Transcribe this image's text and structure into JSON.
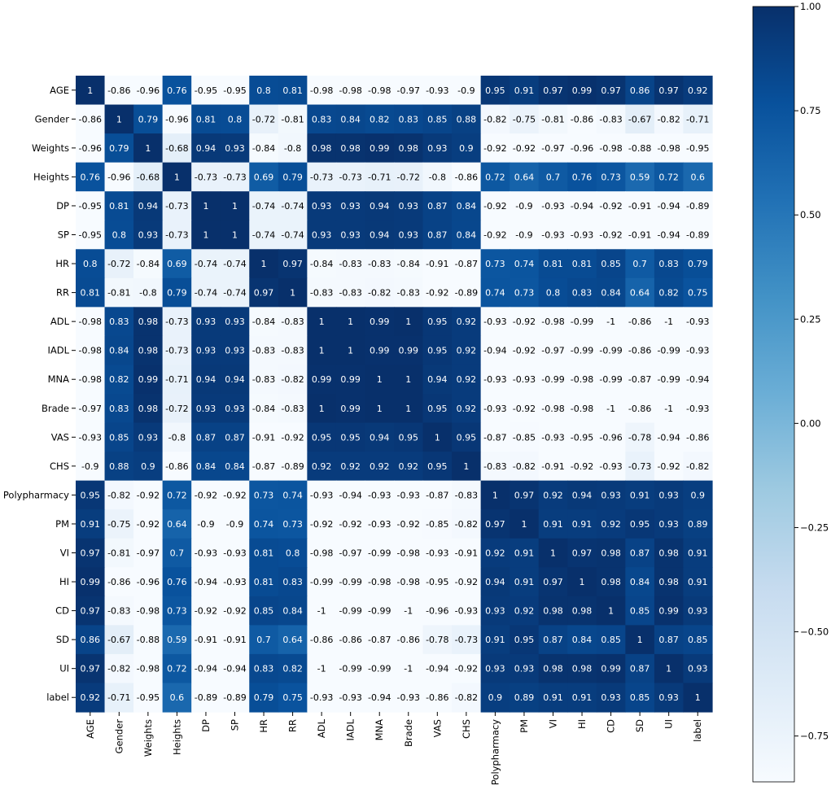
{
  "chart_data": {
    "type": "heatmap",
    "title": "",
    "xlabel": "",
    "ylabel": "",
    "labels": [
      "AGE",
      "Gender",
      "Weights",
      "Heights",
      "DP",
      "SP",
      "HR",
      "RR",
      "ADL",
      "IADL",
      "MNA",
      "Brade",
      "VAS",
      "CHS",
      "Polypharmacy",
      "PM",
      "VI",
      "HI",
      "CD",
      "SD",
      "UI",
      "label"
    ],
    "matrix": [
      [
        "1",
        "-0.86",
        "-0.96",
        "0.76",
        "-0.95",
        "-0.95",
        "0.8",
        "0.81",
        "-0.98",
        "-0.98",
        "-0.98",
        "-0.97",
        "-0.93",
        "-0.9",
        "0.95",
        "0.91",
        "0.97",
        "0.99",
        "0.97",
        "0.86",
        "0.97",
        "0.92"
      ],
      [
        "-0.86",
        "1",
        "0.79",
        "-0.96",
        "0.81",
        "0.8",
        "-0.72",
        "-0.81",
        "0.83",
        "0.84",
        "0.82",
        "0.83",
        "0.85",
        "0.88",
        "-0.82",
        "-0.75",
        "-0.81",
        "-0.86",
        "-0.83",
        "-0.67",
        "-0.82",
        "-0.71"
      ],
      [
        "-0.96",
        "0.79",
        "1",
        "-0.68",
        "0.94",
        "0.93",
        "-0.84",
        "-0.8",
        "0.98",
        "0.98",
        "0.99",
        "0.98",
        "0.93",
        "0.9",
        "-0.92",
        "-0.92",
        "-0.97",
        "-0.96",
        "-0.98",
        "-0.88",
        "-0.98",
        "-0.95"
      ],
      [
        "0.76",
        "-0.96",
        "-0.68",
        "1",
        "-0.73",
        "-0.73",
        "0.69",
        "0.79",
        "-0.73",
        "-0.73",
        "-0.71",
        "-0.72",
        "-0.8",
        "-0.86",
        "0.72",
        "0.64",
        "0.7",
        "0.76",
        "0.73",
        "0.59",
        "0.72",
        "0.6"
      ],
      [
        "-0.95",
        "0.81",
        "0.94",
        "-0.73",
        "1",
        "1",
        "-0.74",
        "-0.74",
        "0.93",
        "0.93",
        "0.94",
        "0.93",
        "0.87",
        "0.84",
        "-0.92",
        "-0.9",
        "-0.93",
        "-0.94",
        "-0.92",
        "-0.91",
        "-0.94",
        "-0.89"
      ],
      [
        "-0.95",
        "0.8",
        "0.93",
        "-0.73",
        "1",
        "1",
        "-0.74",
        "-0.74",
        "0.93",
        "0.93",
        "0.94",
        "0.93",
        "0.87",
        "0.84",
        "-0.92",
        "-0.9",
        "-0.93",
        "-0.93",
        "-0.92",
        "-0.91",
        "-0.94",
        "-0.89"
      ],
      [
        "0.8",
        "-0.72",
        "-0.84",
        "0.69",
        "-0.74",
        "-0.74",
        "1",
        "0.97",
        "-0.84",
        "-0.83",
        "-0.83",
        "-0.84",
        "-0.91",
        "-0.87",
        "0.73",
        "0.74",
        "0.81",
        "0.81",
        "0.85",
        "0.7",
        "0.83",
        "0.79"
      ],
      [
        "0.81",
        "-0.81",
        "-0.8",
        "0.79",
        "-0.74",
        "-0.74",
        "0.97",
        "1",
        "-0.83",
        "-0.83",
        "-0.82",
        "-0.83",
        "-0.92",
        "-0.89",
        "0.74",
        "0.73",
        "0.8",
        "0.83",
        "0.84",
        "0.64",
        "0.82",
        "0.75"
      ],
      [
        "-0.98",
        "0.83",
        "0.98",
        "-0.73",
        "0.93",
        "0.93",
        "-0.84",
        "-0.83",
        "1",
        "1",
        "0.99",
        "1",
        "0.95",
        "0.92",
        "-0.93",
        "-0.92",
        "-0.98",
        "-0.99",
        "-1",
        "-0.86",
        "-1",
        "-0.93"
      ],
      [
        "-0.98",
        "0.84",
        "0.98",
        "-0.73",
        "0.93",
        "0.93",
        "-0.83",
        "-0.83",
        "1",
        "1",
        "0.99",
        "0.99",
        "0.95",
        "0.92",
        "-0.94",
        "-0.92",
        "-0.97",
        "-0.99",
        "-0.99",
        "-0.86",
        "-0.99",
        "-0.93"
      ],
      [
        "-0.98",
        "0.82",
        "0.99",
        "-0.71",
        "0.94",
        "0.94",
        "-0.83",
        "-0.82",
        "0.99",
        "0.99",
        "1",
        "1",
        "0.94",
        "0.92",
        "-0.93",
        "-0.93",
        "-0.99",
        "-0.98",
        "-0.99",
        "-0.87",
        "-0.99",
        "-0.94"
      ],
      [
        "-0.97",
        "0.83",
        "0.98",
        "-0.72",
        "0.93",
        "0.93",
        "-0.84",
        "-0.83",
        "1",
        "0.99",
        "1",
        "1",
        "0.95",
        "0.92",
        "-0.93",
        "-0.92",
        "-0.98",
        "-0.98",
        "-1",
        "-0.86",
        "-1",
        "-0.93"
      ],
      [
        "-0.93",
        "0.85",
        "0.93",
        "-0.8",
        "0.87",
        "0.87",
        "-0.91",
        "-0.92",
        "0.95",
        "0.95",
        "0.94",
        "0.95",
        "1",
        "0.95",
        "-0.87",
        "-0.85",
        "-0.93",
        "-0.95",
        "-0.96",
        "-0.78",
        "-0.94",
        "-0.86"
      ],
      [
        "-0.9",
        "0.88",
        "0.9",
        "-0.86",
        "0.84",
        "0.84",
        "-0.87",
        "-0.89",
        "0.92",
        "0.92",
        "0.92",
        "0.92",
        "0.95",
        "1",
        "-0.83",
        "-0.82",
        "-0.91",
        "-0.92",
        "-0.93",
        "-0.73",
        "-0.92",
        "-0.82"
      ],
      [
        "0.95",
        "-0.82",
        "-0.92",
        "0.72",
        "-0.92",
        "-0.92",
        "0.73",
        "0.74",
        "-0.93",
        "-0.94",
        "-0.93",
        "-0.93",
        "-0.87",
        "-0.83",
        "1",
        "0.97",
        "0.92",
        "0.94",
        "0.93",
        "0.91",
        "0.93",
        "0.9"
      ],
      [
        "0.91",
        "-0.75",
        "-0.92",
        "0.64",
        "-0.9",
        "-0.9",
        "0.74",
        "0.73",
        "-0.92",
        "-0.92",
        "-0.93",
        "-0.92",
        "-0.85",
        "-0.82",
        "0.97",
        "1",
        "0.91",
        "0.91",
        "0.92",
        "0.95",
        "0.93",
        "0.89"
      ],
      [
        "0.97",
        "-0.81",
        "-0.97",
        "0.7",
        "-0.93",
        "-0.93",
        "0.81",
        "0.8",
        "-0.98",
        "-0.97",
        "-0.99",
        "-0.98",
        "-0.93",
        "-0.91",
        "0.92",
        "0.91",
        "1",
        "0.97",
        "0.98",
        "0.87",
        "0.98",
        "0.91"
      ],
      [
        "0.99",
        "-0.86",
        "-0.96",
        "0.76",
        "-0.94",
        "-0.93",
        "0.81",
        "0.83",
        "-0.99",
        "-0.99",
        "-0.98",
        "-0.98",
        "-0.95",
        "-0.92",
        "0.94",
        "0.91",
        "0.97",
        "1",
        "0.98",
        "0.84",
        "0.98",
        "0.91"
      ],
      [
        "0.97",
        "-0.83",
        "-0.98",
        "0.73",
        "-0.92",
        "-0.92",
        "0.85",
        "0.84",
        "-1",
        "-0.99",
        "-0.99",
        "-1",
        "-0.96",
        "-0.93",
        "0.93",
        "0.92",
        "0.98",
        "0.98",
        "1",
        "0.85",
        "0.99",
        "0.93"
      ],
      [
        "0.86",
        "-0.67",
        "-0.88",
        "0.59",
        "-0.91",
        "-0.91",
        "0.7",
        "0.64",
        "-0.86",
        "-0.86",
        "-0.87",
        "-0.86",
        "-0.78",
        "-0.73",
        "0.91",
        "0.95",
        "0.87",
        "0.84",
        "0.85",
        "1",
        "0.87",
        "0.85"
      ],
      [
        "0.97",
        "-0.82",
        "-0.98",
        "0.72",
        "-0.94",
        "-0.94",
        "0.83",
        "0.82",
        "-1",
        "-0.99",
        "-0.99",
        "-1",
        "-0.94",
        "-0.92",
        "0.93",
        "0.93",
        "0.98",
        "0.98",
        "0.99",
        "0.87",
        "1",
        "0.93"
      ],
      [
        "0.92",
        "-0.71",
        "-0.95",
        "0.6",
        "-0.89",
        "-0.89",
        "0.79",
        "0.75",
        "-0.93",
        "-0.93",
        "-0.94",
        "-0.93",
        "-0.86",
        "-0.82",
        "0.9",
        "0.89",
        "0.91",
        "0.91",
        "0.93",
        "0.85",
        "0.93",
        "1"
      ]
    ],
    "colorbar": {
      "range": [
        -0.86,
        1.0
      ],
      "ticks": [
        "1.00",
        "0.75",
        "0.50",
        "0.25",
        "0.00",
        "−0.25",
        "−0.50",
        "−0.75"
      ],
      "tick_values": [
        1.0,
        0.75,
        0.5,
        0.25,
        0.0,
        -0.25,
        -0.5,
        -0.75
      ]
    },
    "colormap": "Blues",
    "colormap_stops": [
      "#f7fbff",
      "#deebf7",
      "#c6dbef",
      "#9ecae1",
      "#6baed6",
      "#4292c6",
      "#2171b5",
      "#08519c",
      "#08306b"
    ],
    "grid": false,
    "legend": "colorbar-right"
  }
}
